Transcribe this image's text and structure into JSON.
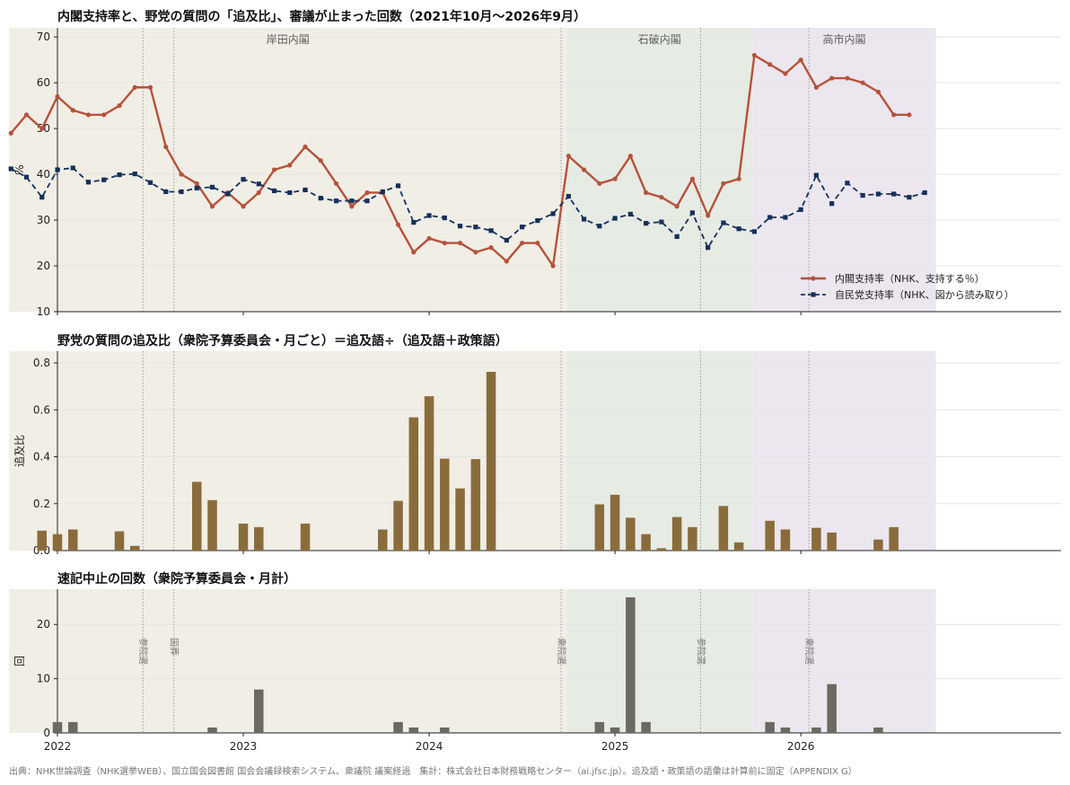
{
  "footer": "出典：NHK世論調査（NHK選挙WEB）、国立国会図書館 国会会議録検索システム、衆議院 議案経過　集計：株式会社日本財務戦略センター（ai.jfsc.jp）。追及語・政策語の語彙は計算前に固定（APPENDIX G）",
  "colors": {
    "cabinet_line": "#b5523b",
    "ldp_line": "#15305a",
    "bars_middle": "#8a6c3c",
    "bars_bottom": "#6b6a62",
    "kishida_bg": "#f1eee6",
    "ishiba_bg": "#e6ebe4",
    "takaichi_bg": "#ece6ef"
  },
  "cabinets": [
    {
      "name": "岸田内閣",
      "start": "2021-10",
      "end": "2024-10"
    },
    {
      "name": "石破内閣",
      "start": "2024-10",
      "end": "2025-10"
    },
    {
      "name": "高市内閣",
      "start": "2025-10",
      "end": "2026-09"
    }
  ],
  "elections": [
    {
      "label": "参院選",
      "date": "2022-07"
    },
    {
      "label": "国葬",
      "date": "2022-09"
    },
    {
      "label": "衆院選",
      "date": "2024-10"
    },
    {
      "label": "参院選",
      "date": "2025-07"
    },
    {
      "label": "衆院選",
      "date": "2026-02"
    }
  ],
  "x_ticks": [
    "2022",
    "2023",
    "2024",
    "2025",
    "2026"
  ],
  "chart_data": [
    {
      "type": "line",
      "title": "内閣支持率と、野党の質問の「追及比」、審議が止まった回数（2021年10月〜2026年9月）",
      "ylabel": "%",
      "ylim": [
        10,
        72
      ],
      "yticks": [
        10,
        20,
        30,
        40,
        50,
        60,
        70
      ],
      "legend_position": "bottom-right",
      "series": [
        {
          "name": "内閣支持率（NHK、支持する％）",
          "style": "solid",
          "points": [
            [
              "2021-10",
              49
            ],
            [
              "2021-11",
              53
            ],
            [
              "2021-12",
              50
            ],
            [
              "2022-01",
              57
            ],
            [
              "2022-02",
              54
            ],
            [
              "2022-03",
              53
            ],
            [
              "2022-04",
              53
            ],
            [
              "2022-05",
              55
            ],
            [
              "2022-06",
              59
            ],
            [
              "2022-07",
              59
            ],
            [
              "2022-08",
              46
            ],
            [
              "2022-09",
              40
            ],
            [
              "2022-10",
              38
            ],
            [
              "2022-11",
              33
            ],
            [
              "2022-12",
              36
            ],
            [
              "2023-01",
              33
            ],
            [
              "2023-02",
              36
            ],
            [
              "2023-03",
              41
            ],
            [
              "2023-04",
              42
            ],
            [
              "2023-05",
              46
            ],
            [
              "2023-06",
              43
            ],
            [
              "2023-07",
              38
            ],
            [
              "2023-08",
              33
            ],
            [
              "2023-09",
              36
            ],
            [
              "2023-10",
              36
            ],
            [
              "2023-11",
              29
            ],
            [
              "2023-12",
              23
            ],
            [
              "2024-01",
              26
            ],
            [
              "2024-02",
              25
            ],
            [
              "2024-03",
              25
            ],
            [
              "2024-04",
              23
            ],
            [
              "2024-05",
              24
            ],
            [
              "2024-06",
              21
            ],
            [
              "2024-07",
              25
            ],
            [
              "2024-08",
              25
            ],
            [
              "2024-09",
              20
            ],
            [
              "2024-10",
              44
            ],
            [
              "2024-11",
              41
            ],
            [
              "2024-12",
              38
            ],
            [
              "2025-01",
              39
            ],
            [
              "2025-02",
              44
            ],
            [
              "2025-03",
              36
            ],
            [
              "2025-04",
              35
            ],
            [
              "2025-05",
              33
            ],
            [
              "2025-06",
              39
            ],
            [
              "2025-07",
              31
            ],
            [
              "2025-08",
              38
            ],
            [
              "2025-09",
              39
            ],
            [
              "2025-10",
              66
            ],
            [
              "2025-11",
              64
            ],
            [
              "2025-12",
              62
            ],
            [
              "2026-01",
              65
            ],
            [
              "2026-02",
              59
            ],
            [
              "2026-03",
              61
            ],
            [
              "2026-04",
              61
            ],
            [
              "2026-05",
              60
            ],
            [
              "2026-06",
              58
            ],
            [
              "2026-07",
              53
            ],
            [
              "2026-08",
              53
            ]
          ]
        },
        {
          "name": "自民党支持率（NHK、図から読み取り）",
          "style": "dashed",
          "points": [
            [
              "2021-10",
              41.2
            ],
            [
              "2021-11",
              39.4
            ],
            [
              "2021-12",
              35
            ],
            [
              "2022-01",
              41
            ],
            [
              "2022-02",
              41.4
            ],
            [
              "2022-03",
              38.3
            ],
            [
              "2022-04",
              38.8
            ],
            [
              "2022-05",
              39.9
            ],
            [
              "2022-06",
              40.1
            ],
            [
              "2022-07",
              38.2
            ],
            [
              "2022-08",
              36.2
            ],
            [
              "2022-09",
              36.2
            ],
            [
              "2022-10",
              37
            ],
            [
              "2022-11",
              37.2
            ],
            [
              "2022-12",
              35.7
            ],
            [
              "2023-01",
              38.9
            ],
            [
              "2023-02",
              37.9
            ],
            [
              "2023-03",
              36.4
            ],
            [
              "2023-04",
              36
            ],
            [
              "2023-05",
              36.6
            ],
            [
              "2023-06",
              34.8
            ],
            [
              "2023-07",
              34.2
            ],
            [
              "2023-08",
              34.2
            ],
            [
              "2023-09",
              34.2
            ],
            [
              "2023-10",
              36.2
            ],
            [
              "2023-11",
              37.5
            ],
            [
              "2023-12",
              29.5
            ],
            [
              "2024-01",
              31
            ],
            [
              "2024-02",
              30.5
            ],
            [
              "2024-03",
              28.7
            ],
            [
              "2024-04",
              28.5
            ],
            [
              "2024-05",
              27.7
            ],
            [
              "2024-06",
              25.6
            ],
            [
              "2024-07",
              28.5
            ],
            [
              "2024-08",
              29.9
            ],
            [
              "2024-09",
              31.4
            ],
            [
              "2024-10",
              35.2
            ],
            [
              "2024-11",
              30.2
            ],
            [
              "2024-12",
              28.7
            ],
            [
              "2025-01",
              30.4
            ],
            [
              "2025-02",
              31.3
            ],
            [
              "2025-03",
              29.3
            ],
            [
              "2025-04",
              29.6
            ],
            [
              "2025-05",
              26.4
            ],
            [
              "2025-06",
              31.6
            ],
            [
              "2025-07",
              24
            ],
            [
              "2025-08",
              29.4
            ],
            [
              "2025-09",
              28.1
            ],
            [
              "2025-10",
              27.5
            ],
            [
              "2025-11",
              30.6
            ],
            [
              "2025-12",
              30.6
            ],
            [
              "2026-01",
              32.3
            ],
            [
              "2026-02",
              39.8
            ],
            [
              "2026-03",
              33.6
            ],
            [
              "2026-04",
              38.1
            ],
            [
              "2026-05",
              35.4
            ],
            [
              "2026-06",
              35.7
            ],
            [
              "2026-07",
              35.7
            ],
            [
              "2026-08",
              35
            ],
            [
              "2026-09",
              36
            ]
          ]
        }
      ]
    },
    {
      "type": "bar",
      "title": "野党の質問の追及比（衆院予算委員会・月ごと）＝追及語÷（追及語＋政策語）",
      "ylabel": "追及比",
      "ylim": [
        0,
        0.85
      ],
      "yticks": [
        0.0,
        0.2,
        0.4,
        0.6,
        0.8
      ],
      "tick_labels": [
        "0.0",
        "0.2",
        "0.4",
        "0.6",
        "0.8"
      ],
      "bars": [
        [
          "2021-12",
          0.085
        ],
        [
          "2022-01",
          0.07
        ],
        [
          "2022-02",
          0.09
        ],
        [
          "2022-05",
          0.082
        ],
        [
          "2022-06",
          0.02
        ],
        [
          "2022-10",
          0.293
        ],
        [
          "2022-11",
          0.215
        ],
        [
          "2023-01",
          0.115
        ],
        [
          "2023-02",
          0.1
        ],
        [
          "2023-05",
          0.115
        ],
        [
          "2023-10",
          0.09
        ],
        [
          "2023-11",
          0.212
        ],
        [
          "2023-12",
          0.568
        ],
        [
          "2024-01",
          0.658
        ],
        [
          "2024-02",
          0.392
        ],
        [
          "2024-03",
          0.265
        ],
        [
          "2024-04",
          0.39
        ],
        [
          "2024-05",
          0.762
        ],
        [
          "2024-12",
          0.197
        ],
        [
          "2025-01",
          0.238
        ],
        [
          "2025-02",
          0.14
        ],
        [
          "2025-03",
          0.07
        ],
        [
          "2025-04",
          0.01
        ],
        [
          "2025-05",
          0.143
        ],
        [
          "2025-06",
          0.1
        ],
        [
          "2025-08",
          0.19
        ],
        [
          "2025-09",
          0.035
        ],
        [
          "2025-11",
          0.127
        ],
        [
          "2025-12",
          0.09
        ],
        [
          "2026-02",
          0.097
        ],
        [
          "2026-03",
          0.077
        ],
        [
          "2026-06",
          0.047
        ],
        [
          "2026-07",
          0.1
        ]
      ]
    },
    {
      "type": "bar",
      "title": "速記中止の回数（衆院予算委員会・月計）",
      "ylabel": "回",
      "ylim": [
        0,
        26.5
      ],
      "yticks": [
        0,
        10,
        20
      ],
      "tick_labels": [
        "0",
        "10",
        "20"
      ],
      "bars": [
        [
          "2022-01",
          2
        ],
        [
          "2022-02",
          2
        ],
        [
          "2022-11",
          1
        ],
        [
          "2023-02",
          8
        ],
        [
          "2023-11",
          2
        ],
        [
          "2023-12",
          1
        ],
        [
          "2024-02",
          1
        ],
        [
          "2024-12",
          2
        ],
        [
          "2025-01",
          1
        ],
        [
          "2025-02",
          25
        ],
        [
          "2025-03",
          2
        ],
        [
          "2025-11",
          2
        ],
        [
          "2025-12",
          1
        ],
        [
          "2026-02",
          1
        ],
        [
          "2026-03",
          9
        ],
        [
          "2026-06",
          1
        ]
      ]
    }
  ]
}
